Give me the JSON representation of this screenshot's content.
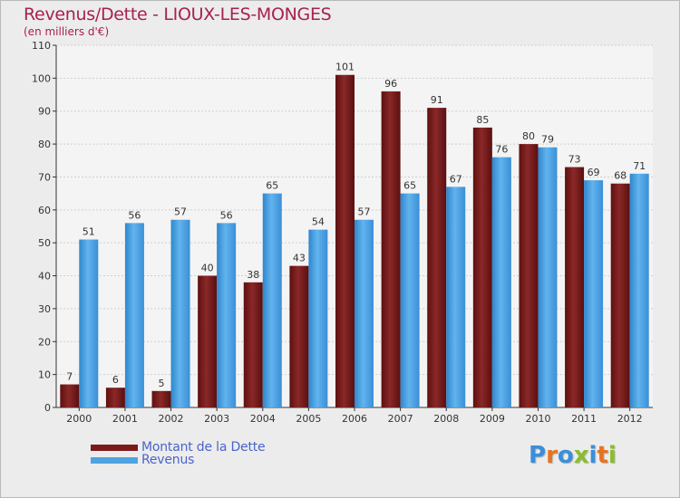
{
  "title": "Revenus/Dette - LIOUX-LES-MONGES",
  "subtitle": "(en milliers d'€)",
  "logo": {
    "text": "Proxiti",
    "colors": [
      "#3a8fd8",
      "#e8731e",
      "#3a8fd8",
      "#8bbd2a",
      "#3a8fd8",
      "#e8731e",
      "#8bbd2a"
    ]
  },
  "colors": {
    "dette": "#7a1b1b",
    "revenus": "#4fa3e0",
    "grid": "#cfcfcf",
    "axis": "#333333"
  },
  "chart_data": {
    "type": "bar",
    "categories": [
      "2000",
      "2001",
      "2002",
      "2003",
      "2004",
      "2005",
      "2006",
      "2007",
      "2008",
      "2009",
      "2010",
      "2011",
      "2012"
    ],
    "series": [
      {
        "name": "Montant de la Dette",
        "values": [
          7,
          6,
          5,
          40,
          38,
          43,
          101,
          96,
          91,
          85,
          80,
          73,
          68
        ]
      },
      {
        "name": "Revenus",
        "values": [
          51,
          56,
          57,
          56,
          65,
          54,
          57,
          65,
          67,
          76,
          79,
          69,
          71
        ]
      }
    ],
    "yticks": [
      0,
      10,
      20,
      30,
      40,
      50,
      60,
      70,
      80,
      90,
      100,
      110
    ],
    "ylim": [
      0,
      110
    ],
    "grid": true,
    "legend_position": "bottom-left"
  }
}
